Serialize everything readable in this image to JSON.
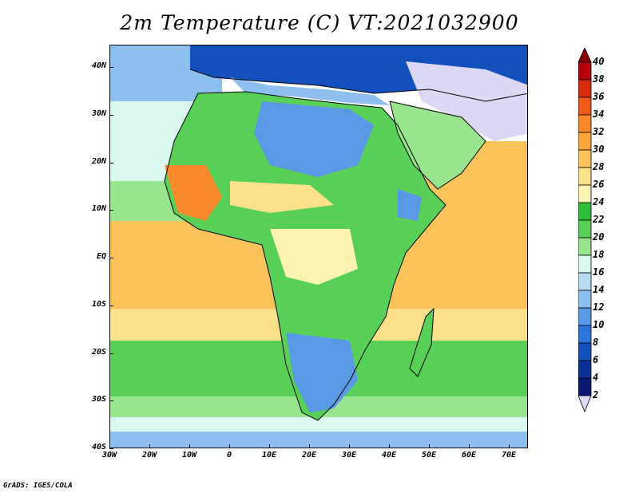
{
  "title": "2m Temperature (C) VT:2021032900",
  "credit": "GrADS: IGES/COLA",
  "y_ticks": [
    "40N",
    "30N",
    "20N",
    "10N",
    "EQ",
    "10S",
    "20S",
    "30S",
    "40S"
  ],
  "x_ticks": [
    "30W",
    "20W",
    "10W",
    "0",
    "10E",
    "20E",
    "30E",
    "40E",
    "50E",
    "60E",
    "70E"
  ],
  "colorbar": {
    "levels": [
      "40",
      "38",
      "36",
      "34",
      "32",
      "30",
      "28",
      "26",
      "24",
      "22",
      "20",
      "18",
      "16",
      "14",
      "12",
      "10",
      "8",
      "6",
      "4",
      "2"
    ],
    "colors": [
      "#8b0000",
      "#b5000c",
      "#d82a0e",
      "#ef5a1a",
      "#f8892a",
      "#fba63b",
      "#fdc35b",
      "#fde08a",
      "#fdf3b2",
      "#2fbe3a",
      "#58cf57",
      "#99e48f",
      "#d8f8f0",
      "#b8dcf4",
      "#8dc0ee",
      "#5a99e6",
      "#2f74db",
      "#1450bd",
      "#0c2f94",
      "#0a1a70",
      "#dcd8f6"
    ]
  }
}
